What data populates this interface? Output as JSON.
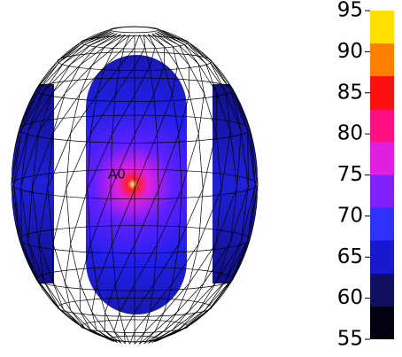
{
  "annotation": "A0",
  "colorbar": {
    "lim": [
      55,
      95
    ],
    "ticks": [
      55,
      60,
      65,
      70,
      75,
      80,
      85,
      90,
      95
    ],
    "colors": [
      "#000010",
      "#101060",
      "#1818d0",
      "#3030ff",
      "#8020ff",
      "#e020e0",
      "#ff1080",
      "#ff1010",
      "#ff8000",
      "#ffe000"
    ]
  }
}
